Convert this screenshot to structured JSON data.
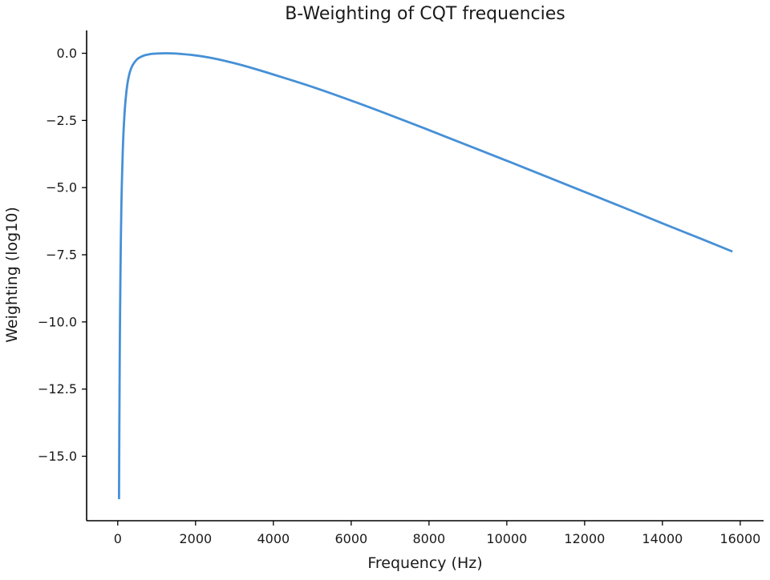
{
  "chart_data": {
    "type": "line",
    "title": "B-Weighting of CQT frequencies",
    "xlabel": "Frequency (Hz)",
    "ylabel": "Weighting (log10)",
    "xlim": [
      -800,
      16600
    ],
    "ylim": [
      -17.4,
      0.85
    ],
    "grid": false,
    "legend": "none",
    "x_ticks": [
      0,
      2000,
      4000,
      6000,
      8000,
      10000,
      12000,
      14000,
      16000
    ],
    "x_tick_labels": [
      "0",
      "2000",
      "4000",
      "6000",
      "8000",
      "10000",
      "12000",
      "14000",
      "16000"
    ],
    "y_ticks": [
      0.0,
      -2.5,
      -5.0,
      -7.5,
      -10.0,
      -12.5,
      -15.0
    ],
    "y_tick_labels": [
      "0.0",
      "−2.5",
      "−5.0",
      "−7.5",
      "−10.0",
      "−12.5",
      "−15.0"
    ],
    "series": [
      {
        "color": "#4690d6",
        "x": [
          32.7,
          40,
          50,
          60,
          80,
          100,
          130,
          160,
          200,
          250,
          300,
          350,
          400,
          500,
          600,
          700,
          800,
          900,
          1000,
          1200,
          1500,
          2000,
          2500,
          3000,
          3500,
          4000,
          5000,
          6000,
          7000,
          8000,
          9000,
          10000,
          11000,
          12000,
          13000,
          14000,
          15000,
          15800
        ],
        "values": [
          -16.6,
          -14.2,
          -11.6,
          -9.6,
          -6.9,
          -5.2,
          -3.6,
          -2.6,
          -1.75,
          -1.12,
          -0.76,
          -0.54,
          -0.4,
          -0.22,
          -0.13,
          -0.07,
          -0.04,
          -0.02,
          -0.01,
          0.0,
          -0.01,
          -0.08,
          -0.2,
          -0.37,
          -0.57,
          -0.79,
          -1.25,
          -1.76,
          -2.3,
          -2.86,
          -3.43,
          -4.0,
          -4.58,
          -5.16,
          -5.74,
          -6.33,
          -6.91,
          -7.38
        ]
      }
    ]
  }
}
